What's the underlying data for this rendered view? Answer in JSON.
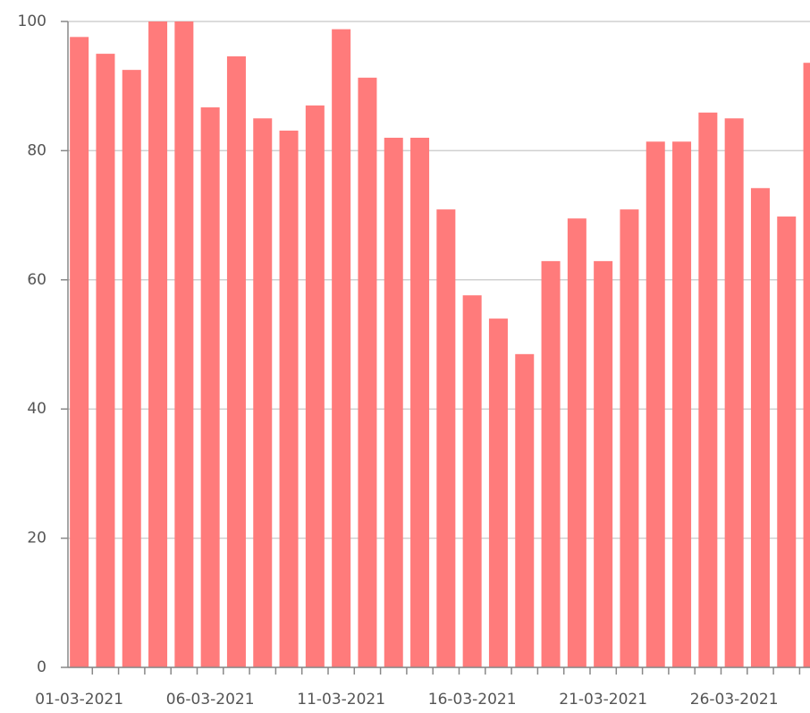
{
  "chart_data": {
    "type": "bar",
    "categories": [
      "01-03-2021",
      null,
      null,
      null,
      null,
      "06-03-2021",
      null,
      null,
      null,
      null,
      "11-03-2021",
      null,
      null,
      null,
      null,
      "16-03-2021",
      null,
      null,
      null,
      null,
      "21-03-2021",
      null,
      null,
      null,
      null,
      "26-03-2021",
      null,
      null,
      null
    ],
    "values": [
      97.6,
      95.0,
      92.5,
      100,
      100,
      86.7,
      94.6,
      85.0,
      83.1,
      87.0,
      98.8,
      91.3,
      82.0,
      82.0,
      70.9,
      57.6,
      54.0,
      48.5,
      62.9,
      69.5,
      62.9,
      70.9,
      81.4,
      81.4,
      85.9,
      85.0,
      74.2,
      69.8,
      93.6
    ],
    "color": "#ff7b7b",
    "ylim": [
      0,
      100
    ],
    "yticks": [
      0,
      20,
      40,
      60,
      80,
      100
    ],
    "grid": true
  }
}
